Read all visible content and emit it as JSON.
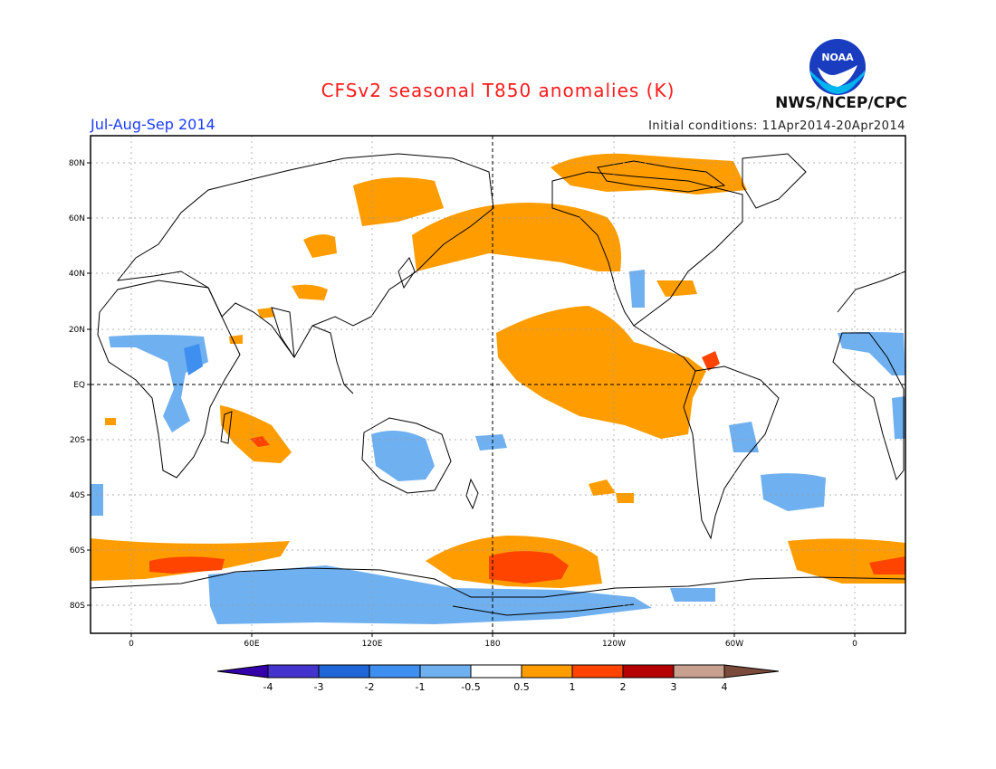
{
  "header": {
    "title": "CFSv2 seasonal T850 anomalies (K)",
    "period": "Jul-Aug-Sep 2014",
    "initial_conditions": "Initial conditions: 11Apr2014-20Apr2014",
    "agency": "NWS/NCEP/CPC",
    "logo_text": "NOAA"
  },
  "axes": {
    "lat_ticks": [
      "80N",
      "60N",
      "40N",
      "20N",
      "EQ",
      "20S",
      "40S",
      "60S",
      "80S"
    ],
    "lon_ticks": [
      "0",
      "60E",
      "120E",
      "180",
      "120W",
      "60W",
      "0"
    ]
  },
  "colorbar": {
    "levels": [
      "-4",
      "-3",
      "-2",
      "-1",
      "-0.5",
      "0.5",
      "1",
      "2",
      "3",
      "4"
    ],
    "colors": [
      "#3300aa",
      "#4433cc",
      "#1f66d6",
      "#3f8ff0",
      "#6fb0f0",
      "#ffffff",
      "#ff9d00",
      "#ff4400",
      "#b50000",
      "#c8a090",
      "#7a4a3a"
    ]
  },
  "chart_data": {
    "type": "heatmap",
    "title": "CFSv2 seasonal T850 anomalies (K)",
    "variable": "T850 anomaly",
    "units": "K",
    "period": "Jul-Aug-Sep 2014",
    "color_levels": [
      -4,
      -3,
      -2,
      -1,
      -0.5,
      0.5,
      1,
      2,
      3,
      4
    ],
    "lat_range": [
      -90,
      90
    ],
    "lon_range": [
      -20,
      380
    ]
  }
}
